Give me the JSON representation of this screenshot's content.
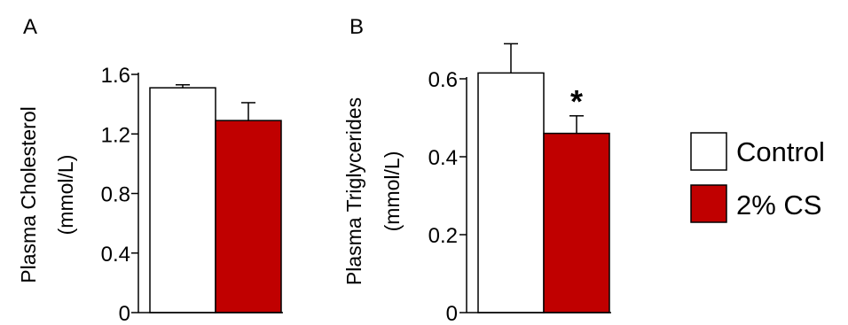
{
  "chart_data": [
    {
      "type": "bar",
      "panel_label": "A",
      "ylabel_line1": "Plasma Cholesterol",
      "ylabel_line2": "(mmol/L)",
      "ylim": [
        0,
        1.6
      ],
      "yticks": [
        "0",
        "0.4",
        "0.8",
        "1.2",
        "1.6"
      ],
      "categories": [
        "Control",
        "2% CS"
      ],
      "values": [
        1.51,
        1.29
      ],
      "errors": [
        0.02,
        0.12
      ],
      "annotations": [
        "",
        ""
      ]
    },
    {
      "type": "bar",
      "panel_label": "B",
      "ylabel_line1": "Plasma Triglycerides",
      "ylabel_line2": "(mmol/L)",
      "ylim": [
        0,
        0.6
      ],
      "yticks": [
        "0",
        "0.2",
        "0.4",
        "0.6"
      ],
      "categories": [
        "Control",
        "2% CS"
      ],
      "values": [
        0.615,
        0.46
      ],
      "errors": [
        0.075,
        0.045
      ],
      "annotations": [
        "",
        "*"
      ]
    }
  ],
  "legend": {
    "placement": "right",
    "items": [
      {
        "label": "Control",
        "color": "#ffffff"
      },
      {
        "label": "2% CS",
        "color": "#c00000"
      }
    ]
  },
  "colors": {
    "control": "#ffffff",
    "treatment": "#c00000",
    "stroke": "#000000"
  }
}
